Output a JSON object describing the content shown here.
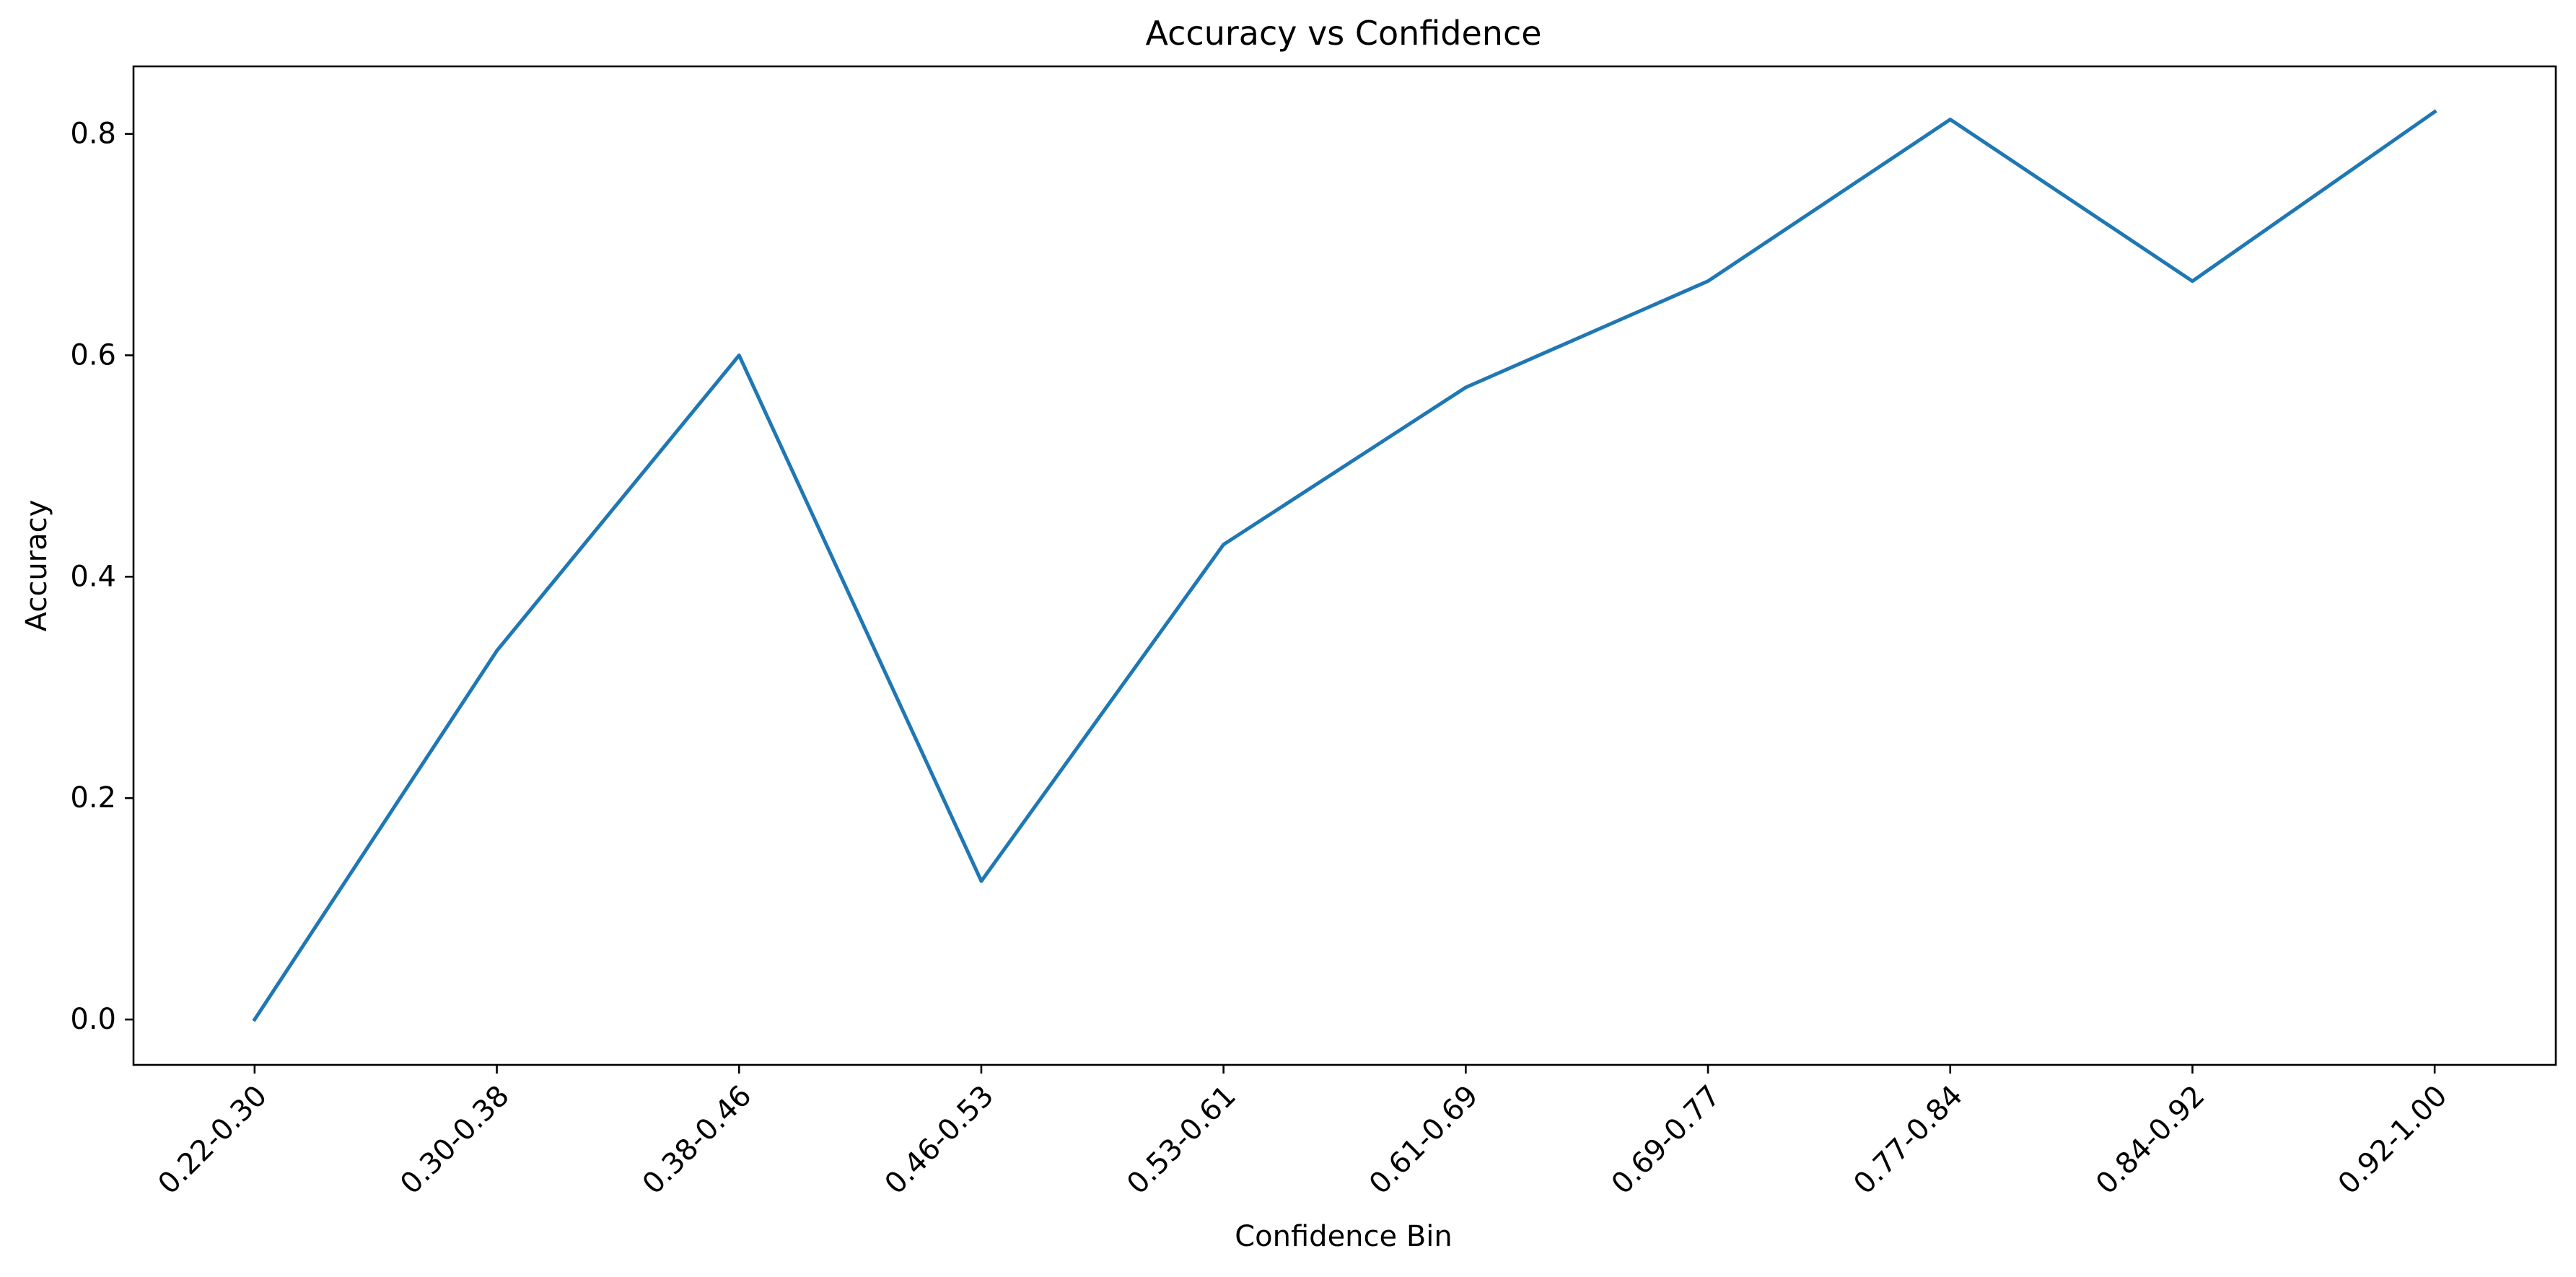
{
  "chart_data": {
    "type": "line",
    "title": "Accuracy vs Confidence",
    "xlabel": "Confidence Bin",
    "ylabel": "Accuracy",
    "categories": [
      "0.22-0.30",
      "0.30-0.38",
      "0.38-0.46",
      "0.46-0.53",
      "0.53-0.61",
      "0.61-0.69",
      "0.69-0.77",
      "0.77-0.84",
      "0.84-0.92",
      "0.92-1.00"
    ],
    "series": [
      {
        "values": [
          0.0,
          0.333,
          0.6,
          0.125,
          0.429,
          0.571,
          0.667,
          0.813,
          0.667,
          0.82
        ],
        "color": "#1f77b4"
      }
    ],
    "y_ticks": [
      "0.0",
      "0.2",
      "0.4",
      "0.6",
      "0.8"
    ],
    "y_tick_values": [
      0.0,
      0.2,
      0.4,
      0.6,
      0.8
    ],
    "ylim": [
      -0.041,
      0.861
    ],
    "grid": false,
    "legend": false
  }
}
